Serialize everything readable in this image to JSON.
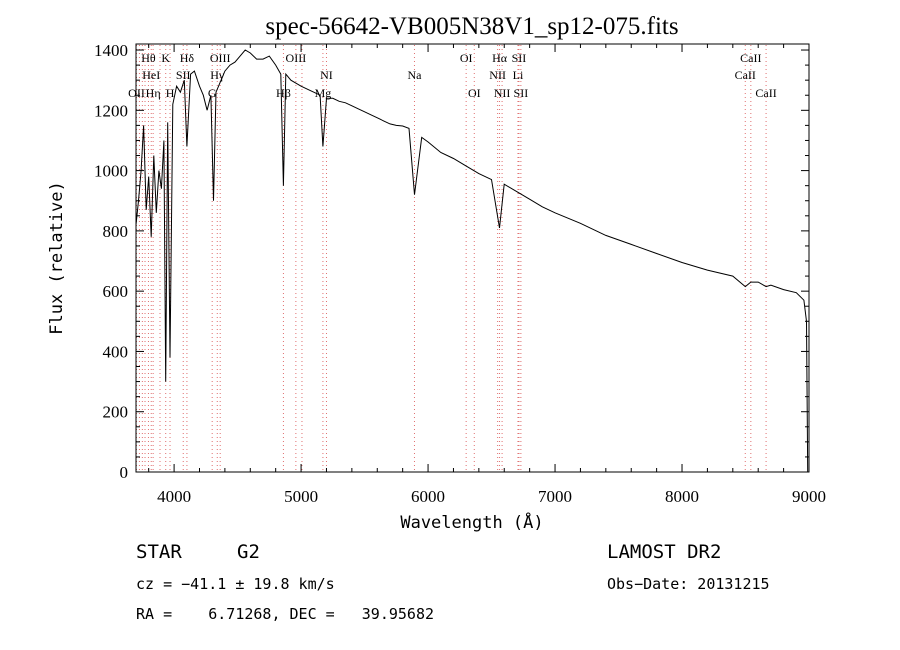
{
  "chart_data": {
    "type": "line",
    "title": "spec-56642-VB005N38V1_sp12-075.fits",
    "xlabel": "Wavelength (Å)",
    "ylabel": "Flux (relative)",
    "xlim": [
      3700,
      9000
    ],
    "ylim": [
      0,
      1420
    ],
    "xticks": [
      4000,
      5000,
      6000,
      7000,
      8000,
      9000
    ],
    "yticks": [
      0,
      200,
      400,
      600,
      800,
      1000,
      1200,
      1400
    ],
    "grid": false,
    "series": [
      {
        "x": [
          3700,
          3720,
          3740,
          3760,
          3780,
          3800,
          3820,
          3840,
          3860,
          3880,
          3900,
          3920,
          3934,
          3950,
          3968,
          3990,
          4020,
          4050,
          4080,
          4101,
          4130,
          4160,
          4200,
          4230,
          4260,
          4290,
          4310,
          4330,
          4360,
          4400,
          4440,
          4480,
          4520,
          4560,
          4600,
          4650,
          4700,
          4750,
          4800,
          4840,
          4861,
          4880,
          4920,
          4960,
          5000,
          5050,
          5100,
          5150,
          5172,
          5200,
          5250,
          5300,
          5350,
          5400,
          5450,
          5500,
          5550,
          5600,
          5650,
          5700,
          5750,
          5800,
          5850,
          5893,
          5950,
          6000,
          6100,
          6200,
          6300,
          6400,
          6500,
          6563,
          6600,
          6700,
          6800,
          6900,
          7000,
          7200,
          7400,
          7600,
          7800,
          8000,
          8200,
          8400,
          8498,
          8542,
          8600,
          8662,
          8700,
          8800,
          8900,
          8960,
          8980,
          8990
        ],
        "y": [
          820,
          900,
          1000,
          1150,
          870,
          980,
          780,
          1050,
          860,
          1000,
          940,
          1100,
          300,
          1160,
          380,
          1220,
          1280,
          1260,
          1300,
          1080,
          1320,
          1330,
          1280,
          1250,
          1200,
          1250,
          900,
          1260,
          1290,
          1330,
          1350,
          1360,
          1380,
          1400,
          1390,
          1370,
          1370,
          1380,
          1350,
          1320,
          950,
          1320,
          1300,
          1290,
          1280,
          1270,
          1260,
          1250,
          1080,
          1240,
          1240,
          1230,
          1225,
          1215,
          1205,
          1195,
          1185,
          1175,
          1165,
          1155,
          1150,
          1148,
          1140,
          920,
          1110,
          1095,
          1060,
          1040,
          1015,
          990,
          970,
          810,
          955,
          930,
          905,
          880,
          860,
          825,
          785,
          755,
          725,
          695,
          670,
          650,
          615,
          630,
          630,
          615,
          620,
          605,
          595,
          570,
          500,
          0
        ]
      }
    ],
    "lines": [
      {
        "x": 3704,
        "label": "OII",
        "row": 2
      },
      {
        "x": 3727,
        "label": "",
        "row": -1
      },
      {
        "x": 3750,
        "label": "",
        "row": -1
      },
      {
        "x": 3771,
        "label": "",
        "row": -1
      },
      {
        "x": 3798,
        "label": "Hθ",
        "row": 0
      },
      {
        "x": 3820,
        "label": "HeI",
        "row": 1
      },
      {
        "x": 3835,
        "label": "Hη",
        "row": 2
      },
      {
        "x": 3889,
        "label": "",
        "row": -1
      },
      {
        "x": 3934,
        "label": "K",
        "row": 0
      },
      {
        "x": 3968,
        "label": "H",
        "row": 2
      },
      {
        "x": 4072,
        "label": "SII",
        "row": 1
      },
      {
        "x": 4101,
        "label": "Hδ",
        "row": 0
      },
      {
        "x": 4300,
        "label": "G",
        "row": 2
      },
      {
        "x": 4340,
        "label": "Hγ",
        "row": 1
      },
      {
        "x": 4363,
        "label": "OIII",
        "row": 0
      },
      {
        "x": 4861,
        "label": "Hβ",
        "row": 2
      },
      {
        "x": 4959,
        "label": "OIII",
        "row": 0
      },
      {
        "x": 5007,
        "label": "",
        "row": -1
      },
      {
        "x": 5172,
        "label": "Mg",
        "row": 2
      },
      {
        "x": 5200,
        "label": "NI",
        "row": 1
      },
      {
        "x": 5893,
        "label": "Na",
        "row": 1
      },
      {
        "x": 6300,
        "label": "OI",
        "row": 0
      },
      {
        "x": 6364,
        "label": "OI",
        "row": 2
      },
      {
        "x": 6548,
        "label": "NII",
        "row": 1
      },
      {
        "x": 6563,
        "label": "Hα",
        "row": 0
      },
      {
        "x": 6583,
        "label": "NII",
        "row": 2
      },
      {
        "x": 6708,
        "label": "Li",
        "row": 1
      },
      {
        "x": 6716,
        "label": "SII",
        "row": 0
      },
      {
        "x": 6731,
        "label": "SII",
        "row": 2
      },
      {
        "x": 8498,
        "label": "CaII",
        "row": 1
      },
      {
        "x": 8542,
        "label": "CaII",
        "row": 0
      },
      {
        "x": 8662,
        "label": "CaII",
        "row": 2
      }
    ]
  },
  "info": {
    "object_class": "STAR",
    "subclass": "G2",
    "survey": "LAMOST DR2",
    "cz": "cz = −41.1 ± 19.8 km/s",
    "obs_date": "Obs−Date: 20131215",
    "coords": "RA =    6.71268, DEC =   39.95682"
  },
  "colors": {
    "line_marker": "#e07070",
    "spectrum": "#000000"
  }
}
